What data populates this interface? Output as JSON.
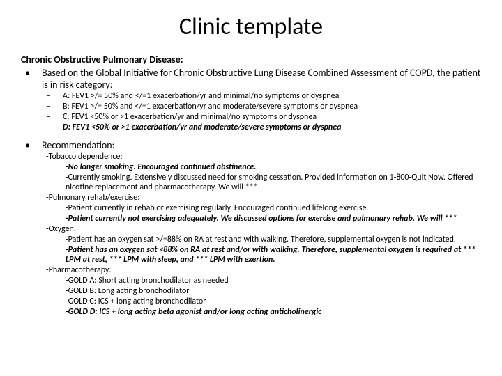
{
  "title": "Clinic template",
  "heading": "Chronic Obstructive Pulmonary Disease:",
  "intro": "Based on the Global Initiative for Chronic Obstructive Lung Disease Combined Assessment of COPD, the patient is in risk category:",
  "categories": [
    {
      "text": "A: FEV1 >/= 50% and </=1 exacerbation/yr and minimal/no symptoms or dyspnea",
      "em": false
    },
    {
      "text": "B: FEV1 >/= 50% and </=1 exacerbation/yr and moderate/severe symptoms or dyspnea",
      "em": false
    },
    {
      "text": "C: FEV1 <50% or >1 exacerbation/yr and minimal/no symptoms or dyspnea",
      "em": false
    },
    {
      "text": "D: FEV1 <50% or >1 exacerbation/yr and moderate/severe symptoms or dyspnea",
      "em": true
    }
  ],
  "rec_label": "Recommendation:",
  "sections": [
    {
      "title": "-Tobacco dependence:",
      "items": [
        {
          "text": "-No longer smoking.  Encouraged continued abstinence.",
          "em": true
        },
        {
          "text": "-Currently smoking.  Extensively discussed need for smoking cessation.  Provided information on 1-800-Quit Now.  Offered nicotine replacement and pharmacotherapy.  We will ***",
          "em": false
        }
      ]
    },
    {
      "title": "-Pulmonary rehab/exercise:",
      "items": [
        {
          "text": "-Patient currently in rehab or exercising regularly.  Encouraged continued lifelong exercise.",
          "em": false
        },
        {
          "text": "-Patient currently not exercising adequately.  We discussed options for exercise and pulmonary rehab.  We will ***",
          "em": true
        }
      ]
    },
    {
      "title": "-Oxygen:",
      "items": [
        {
          "text": "-Patient has an oxygen sat >/=88% on RA at rest and with walking.  Therefore, supplemental oxygen is not indicated.",
          "em": false
        },
        {
          "text": "-Patient has an oxygen sat <88% on RA at rest and/or with walking.  Therefore, supplemental oxygen is required at *** LPM at rest, *** LPM with sleep, and *** LPM with exertion.",
          "em": true
        }
      ]
    },
    {
      "title": "-Pharmacotherapy:",
      "items": [
        {
          "text": "-GOLD A: Short acting bronchodilator as needed",
          "em": false
        },
        {
          "text": "-GOLD B: Long acting bronchodilator",
          "em": false
        },
        {
          "text": "-GOLD C: ICS + long acting bronchodilator",
          "em": false
        },
        {
          "text": "-GOLD D: ICS + long acting beta agonist and/or long acting anticholinergic",
          "em": true
        }
      ]
    }
  ]
}
